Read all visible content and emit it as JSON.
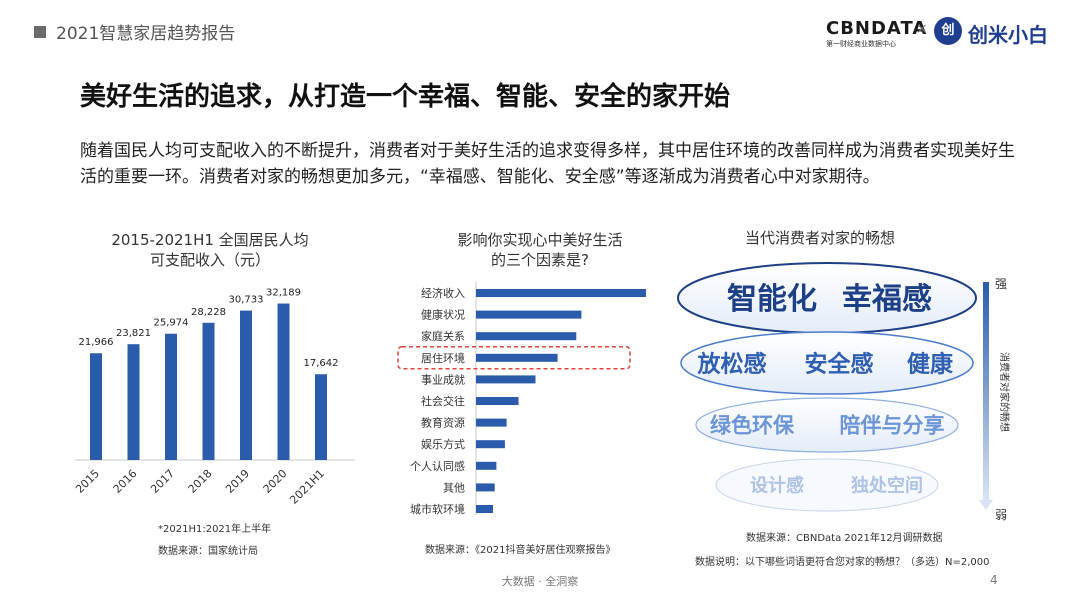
{
  "header": {
    "title": "2021智慧家居趋势报告",
    "brand": "CBNDATA",
    "brand_sub": "第一财经商业数据中心",
    "separator": "×",
    "partner_icon": "创",
    "partner": "创米小白"
  },
  "main_title": "美好生活的追求，从打造一个幸福、智能、安全的家开始",
  "intro": "随着国民人均可支配收入的不断提升，消费者对于美好生活的追求变得多样，其中居住环境的改善同样成为消费者实现美好生活的重要一环。消费者对家的畅想更加多元，“幸福感、智能化、安全感”等逐渐成为消费者心中对家期待。",
  "chart_data": [
    {
      "type": "bar",
      "title_line1": "2015-2021H1 全国居民人均",
      "title_line2": "可支配收入（元）",
      "categories": [
        "2015",
        "2016",
        "2017",
        "2018",
        "2019",
        "2020",
        "2021H1"
      ],
      "values": [
        21966,
        23821,
        25974,
        28228,
        30733,
        32189,
        17642
      ],
      "value_labels": [
        "21,966",
        "23,821",
        "25,974",
        "28,228",
        "30,733",
        "32,189",
        "17,642"
      ],
      "ylim": [
        0,
        36000
      ],
      "color": "#2a5cab",
      "note": "*2021H1:2021年上半年",
      "source": "数据来源：国家统计局"
    },
    {
      "type": "bar",
      "orientation": "horizontal",
      "title_line1": "影响你实现心中美好生活",
      "title_line2": "的三个因素是?",
      "categories": [
        "经济收入",
        "健康状况",
        "家庭关系",
        "居住环境",
        "事业成就",
        "社会交往",
        "教育资源",
        "娱乐方式",
        "个人认同感",
        "其他",
        "城市软环境"
      ],
      "values": [
        100,
        62,
        59,
        48,
        35,
        25,
        18,
        17,
        12,
        11,
        10
      ],
      "highlight": "居住环境",
      "color": "#2a5cab",
      "highlight_color": "#e0453a",
      "source": "数据来源：《2021抖音美好居住观察报告》"
    }
  ],
  "vision": {
    "title": "当代消费者对家的畅想",
    "tiers": [
      {
        "words": [
          "智能化",
          "幸福感"
        ]
      },
      {
        "words": [
          "放松感",
          "安全感",
          "健康"
        ]
      },
      {
        "words": [
          "绿色环保",
          "陪伴与分享"
        ]
      },
      {
        "words": [
          "设计感",
          "独处空间"
        ]
      }
    ],
    "scale_top": "强",
    "scale_bottom": "弱",
    "scale_label": "消费者对家的畅想",
    "source": "数据来源：CBNData 2021年12月调研数据",
    "note": "数据说明：以下哪些词语更符合您对家的畅想？（多选）N=2,000"
  },
  "footer": {
    "center": "大数据 · 全洞察",
    "page": "4"
  }
}
